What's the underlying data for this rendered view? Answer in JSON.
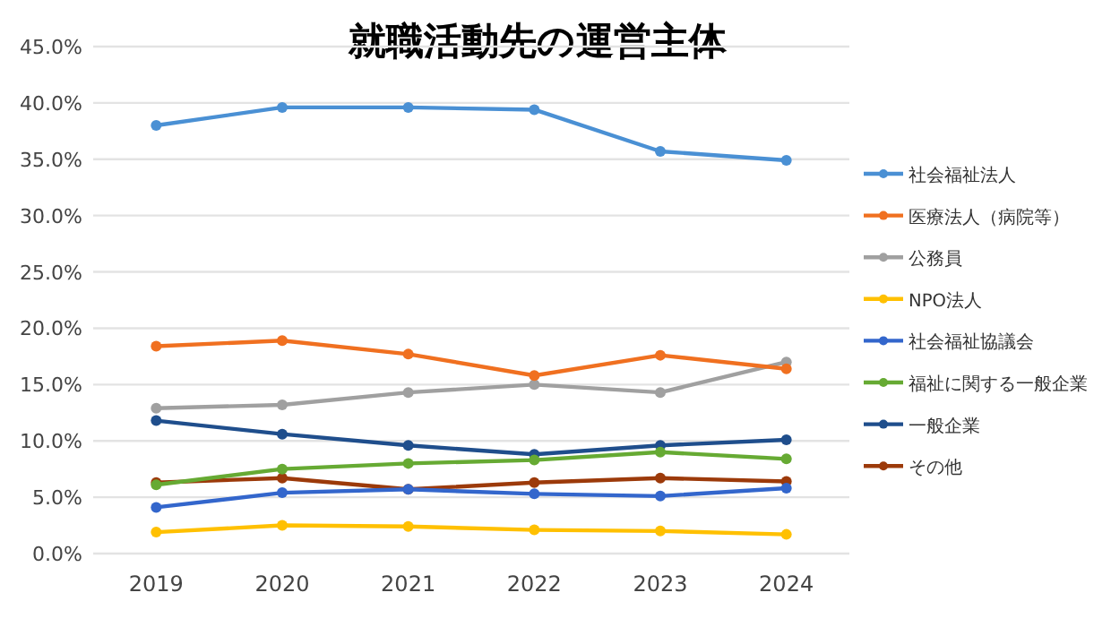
{
  "chart_data": {
    "type": "line",
    "title": "就職活動先の運営主体",
    "categories": [
      "2019",
      "2020",
      "2021",
      "2022",
      "2023",
      "2024"
    ],
    "series": [
      {
        "name": "社会福祉法人",
        "color": "#4a90d4",
        "values": [
          38.0,
          39.6,
          39.6,
          39.4,
          35.7,
          34.9
        ]
      },
      {
        "name": "医療法人（病院等）",
        "color": "#f07020",
        "values": [
          18.4,
          18.9,
          17.7,
          15.8,
          17.6,
          16.4
        ]
      },
      {
        "name": "公務員",
        "color": "#a0a0a0",
        "values": [
          12.9,
          13.2,
          14.3,
          15.0,
          14.3,
          17.0
        ]
      },
      {
        "name": "NPO法人",
        "color": "#ffc000",
        "values": [
          1.9,
          2.5,
          2.4,
          2.1,
          2.0,
          1.7
        ]
      },
      {
        "name": "社会福祉協議会",
        "color": "#3366cc",
        "values": [
          4.1,
          5.4,
          5.7,
          5.3,
          5.1,
          5.8
        ]
      },
      {
        "name": "福祉に関する一般企業",
        "color": "#66aa33",
        "values": [
          6.1,
          7.5,
          8.0,
          8.3,
          9.0,
          8.4
        ]
      },
      {
        "name": "一般企業",
        "color": "#1f4e8c",
        "values": [
          11.8,
          10.6,
          9.6,
          8.8,
          9.6,
          10.1
        ]
      },
      {
        "name": "その他",
        "color": "#9c3a0a",
        "values": [
          6.3,
          6.7,
          5.7,
          6.3,
          6.7,
          6.4
        ]
      }
    ],
    "ylim": [
      0,
      45
    ],
    "yticks": [
      {
        "value": 0,
        "label": "0.0%"
      },
      {
        "value": 5,
        "label": "5.0%"
      },
      {
        "value": 10,
        "label": "10.0%"
      },
      {
        "value": 15,
        "label": "15.0%"
      },
      {
        "value": 20,
        "label": "20.0%"
      },
      {
        "value": 25,
        "label": "25.0%"
      },
      {
        "value": 30,
        "label": "30.0%"
      },
      {
        "value": 35,
        "label": "35.0%"
      },
      {
        "value": 40,
        "label": "40.0%"
      },
      {
        "value": 45,
        "label": "45.0%"
      }
    ],
    "grid": "y",
    "legend": "right",
    "marker": "circle",
    "line_style": "solid"
  }
}
